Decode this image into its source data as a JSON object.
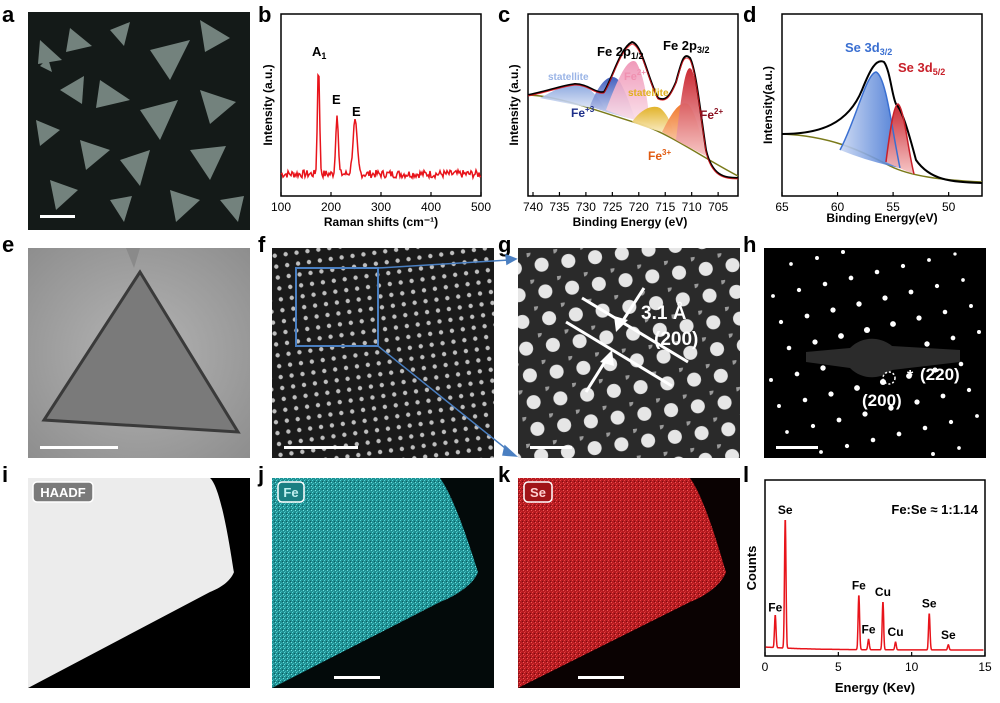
{
  "panel_letters": [
    "a",
    "b",
    "c",
    "d",
    "e",
    "f",
    "g",
    "h",
    "i",
    "j",
    "k",
    "l"
  ],
  "colors": {
    "red": "#e8141b",
    "blue": "#3a6fd1",
    "fe_cyan": "#2ec4c4",
    "se_red": "#d8262b",
    "dark_red": "#b01020",
    "olive": "#7a7a1a",
    "orange": "#f07020",
    "yellow": "#e0b020",
    "pink": "#f090b0",
    "arrow_blue": "#4a7fc1"
  },
  "chart_data": [
    {
      "type": "line",
      "panel": "b",
      "xlabel": "Raman shifts (cm⁻¹)",
      "ylabel": "Intensity (a.u.)",
      "xlim": [
        100,
        500
      ],
      "xticks": [
        "100",
        "200",
        "300",
        "400",
        "500"
      ],
      "peaks": [
        {
          "label": "A",
          "sub": "1",
          "x": 175
        },
        {
          "label": "E",
          "sub": "",
          "x": 212
        },
        {
          "label": "E",
          "sub": "",
          "x": 248
        }
      ]
    },
    {
      "type": "area",
      "panel": "c",
      "xlabel": "Binding Energy (eV)",
      "ylabel": "Intensity (a.u.)",
      "xlim": [
        740,
        702
      ],
      "xticks": [
        "740",
        "735",
        "730",
        "725",
        "720",
        "715",
        "710",
        "705"
      ],
      "labels": {
        "fe2p12_main": "Fe 2p",
        "fe2p12_sub": "1/2",
        "fe2p32_main": "Fe 2p",
        "fe2p32_sub": "3/2",
        "satellite_left": "statellite",
        "satellite_mid": "statellite",
        "fe2plus_top_main": "Fe",
        "fe2plus_top_sup": "2+",
        "fe3plus_left_main": "Fe",
        "fe3plus_left_sup": "+3",
        "fe2plus_right_main": "Fe",
        "fe2plus_right_sup": "2+",
        "fe3plus_bottom_main": "Fe",
        "fe3plus_bottom_sup": "3+"
      }
    },
    {
      "type": "area",
      "panel": "d",
      "xlabel": "Binding Energy(eV)",
      "ylabel": "Intensity(a.u.)",
      "xlim": [
        65,
        47
      ],
      "xticks": [
        "65",
        "60",
        "55",
        "50"
      ],
      "labels": {
        "se3d32_main": "Se 3d",
        "se3d32_sub": "3/2",
        "se3d52_main": "Se 3d",
        "se3d52_sub": "5/2"
      }
    },
    {
      "type": "bar",
      "panel": "l",
      "xlabel": "Energy (Kev)",
      "ylabel": "Counts",
      "xlim": [
        0,
        15
      ],
      "xticks": [
        "0",
        "5",
        "10",
        "15"
      ],
      "annotation": "Fe:Se ≈ 1:1.14",
      "peaks": [
        {
          "label": "Fe",
          "x": 0.7,
          "height": 0.25
        },
        {
          "label": "Se",
          "x": 1.38,
          "height": 1.0
        },
        {
          "label": "Fe",
          "x": 6.4,
          "height": 0.42
        },
        {
          "label": "Fe",
          "x": 7.06,
          "height": 0.08
        },
        {
          "label": "Cu",
          "x": 8.04,
          "height": 0.37
        },
        {
          "label": "Cu",
          "x": 8.9,
          "height": 0.06
        },
        {
          "label": "Se",
          "x": 11.2,
          "height": 0.28
        },
        {
          "label": "Se",
          "x": 12.5,
          "height": 0.04
        }
      ]
    }
  ],
  "panel_g": {
    "spacing": "3.1 Å",
    "plane": "(200)"
  },
  "panel_h": {
    "spot1": "(200)",
    "spot2": "(220)"
  },
  "panel_i": {
    "badge": "HAADF"
  },
  "panel_j": {
    "badge": "Fe"
  },
  "panel_k": {
    "badge": "Se"
  }
}
